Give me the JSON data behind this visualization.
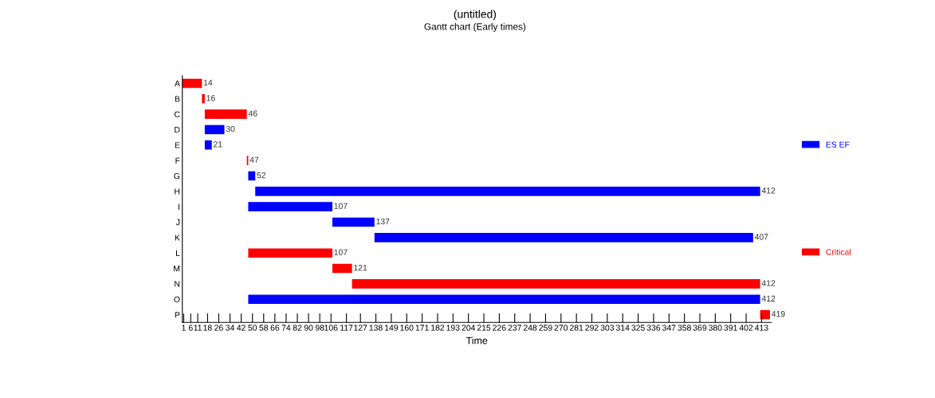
{
  "chart_data": {
    "type": "bar",
    "orientation": "horizontal",
    "title": "(untitled)",
    "subtitle": "Gantt chart (Early times)",
    "xlabel": "Time",
    "categories": [
      "A",
      "B",
      "C",
      "D",
      "E",
      "F",
      "G",
      "H",
      "I",
      "J",
      "K",
      "L",
      "M",
      "N",
      "O",
      "P"
    ],
    "series": [
      {
        "name": "ES EF",
        "color": "#0000ff",
        "base": [
          null,
          null,
          null,
          16,
          16,
          null,
          47,
          52,
          47,
          107,
          137,
          null,
          null,
          null,
          47,
          null
        ],
        "values": [
          null,
          null,
          null,
          14,
          5,
          null,
          5,
          360,
          60,
          30,
          270,
          null,
          null,
          null,
          365,
          null
        ]
      },
      {
        "name": "Critical",
        "color": "#ff0000",
        "base": [
          0,
          14,
          16,
          null,
          null,
          46,
          null,
          null,
          null,
          null,
          null,
          47,
          107,
          121,
          null,
          412
        ],
        "values": [
          14,
          2,
          30,
          null,
          null,
          1,
          null,
          null,
          null,
          null,
          null,
          60,
          14,
          291,
          null,
          7
        ]
      }
    ],
    "value_labels": [
      "14",
      "16",
      "46",
      "30",
      "21",
      "47",
      "52",
      "412",
      "107",
      "137",
      "407",
      "107",
      "121",
      "412",
      "412",
      "419"
    ],
    "xlim": [
      0,
      420
    ],
    "xticks": [
      1,
      6,
      11,
      18,
      26,
      34,
      42,
      50,
      58,
      66,
      74,
      82,
      90,
      98,
      106,
      117,
      127,
      138,
      149,
      160,
      171,
      182,
      193,
      204,
      215,
      226,
      237,
      248,
      259,
      270,
      281,
      292,
      303,
      314,
      325,
      336,
      347,
      358,
      369,
      380,
      391,
      402,
      413
    ],
    "grid": false,
    "legend": "right"
  }
}
